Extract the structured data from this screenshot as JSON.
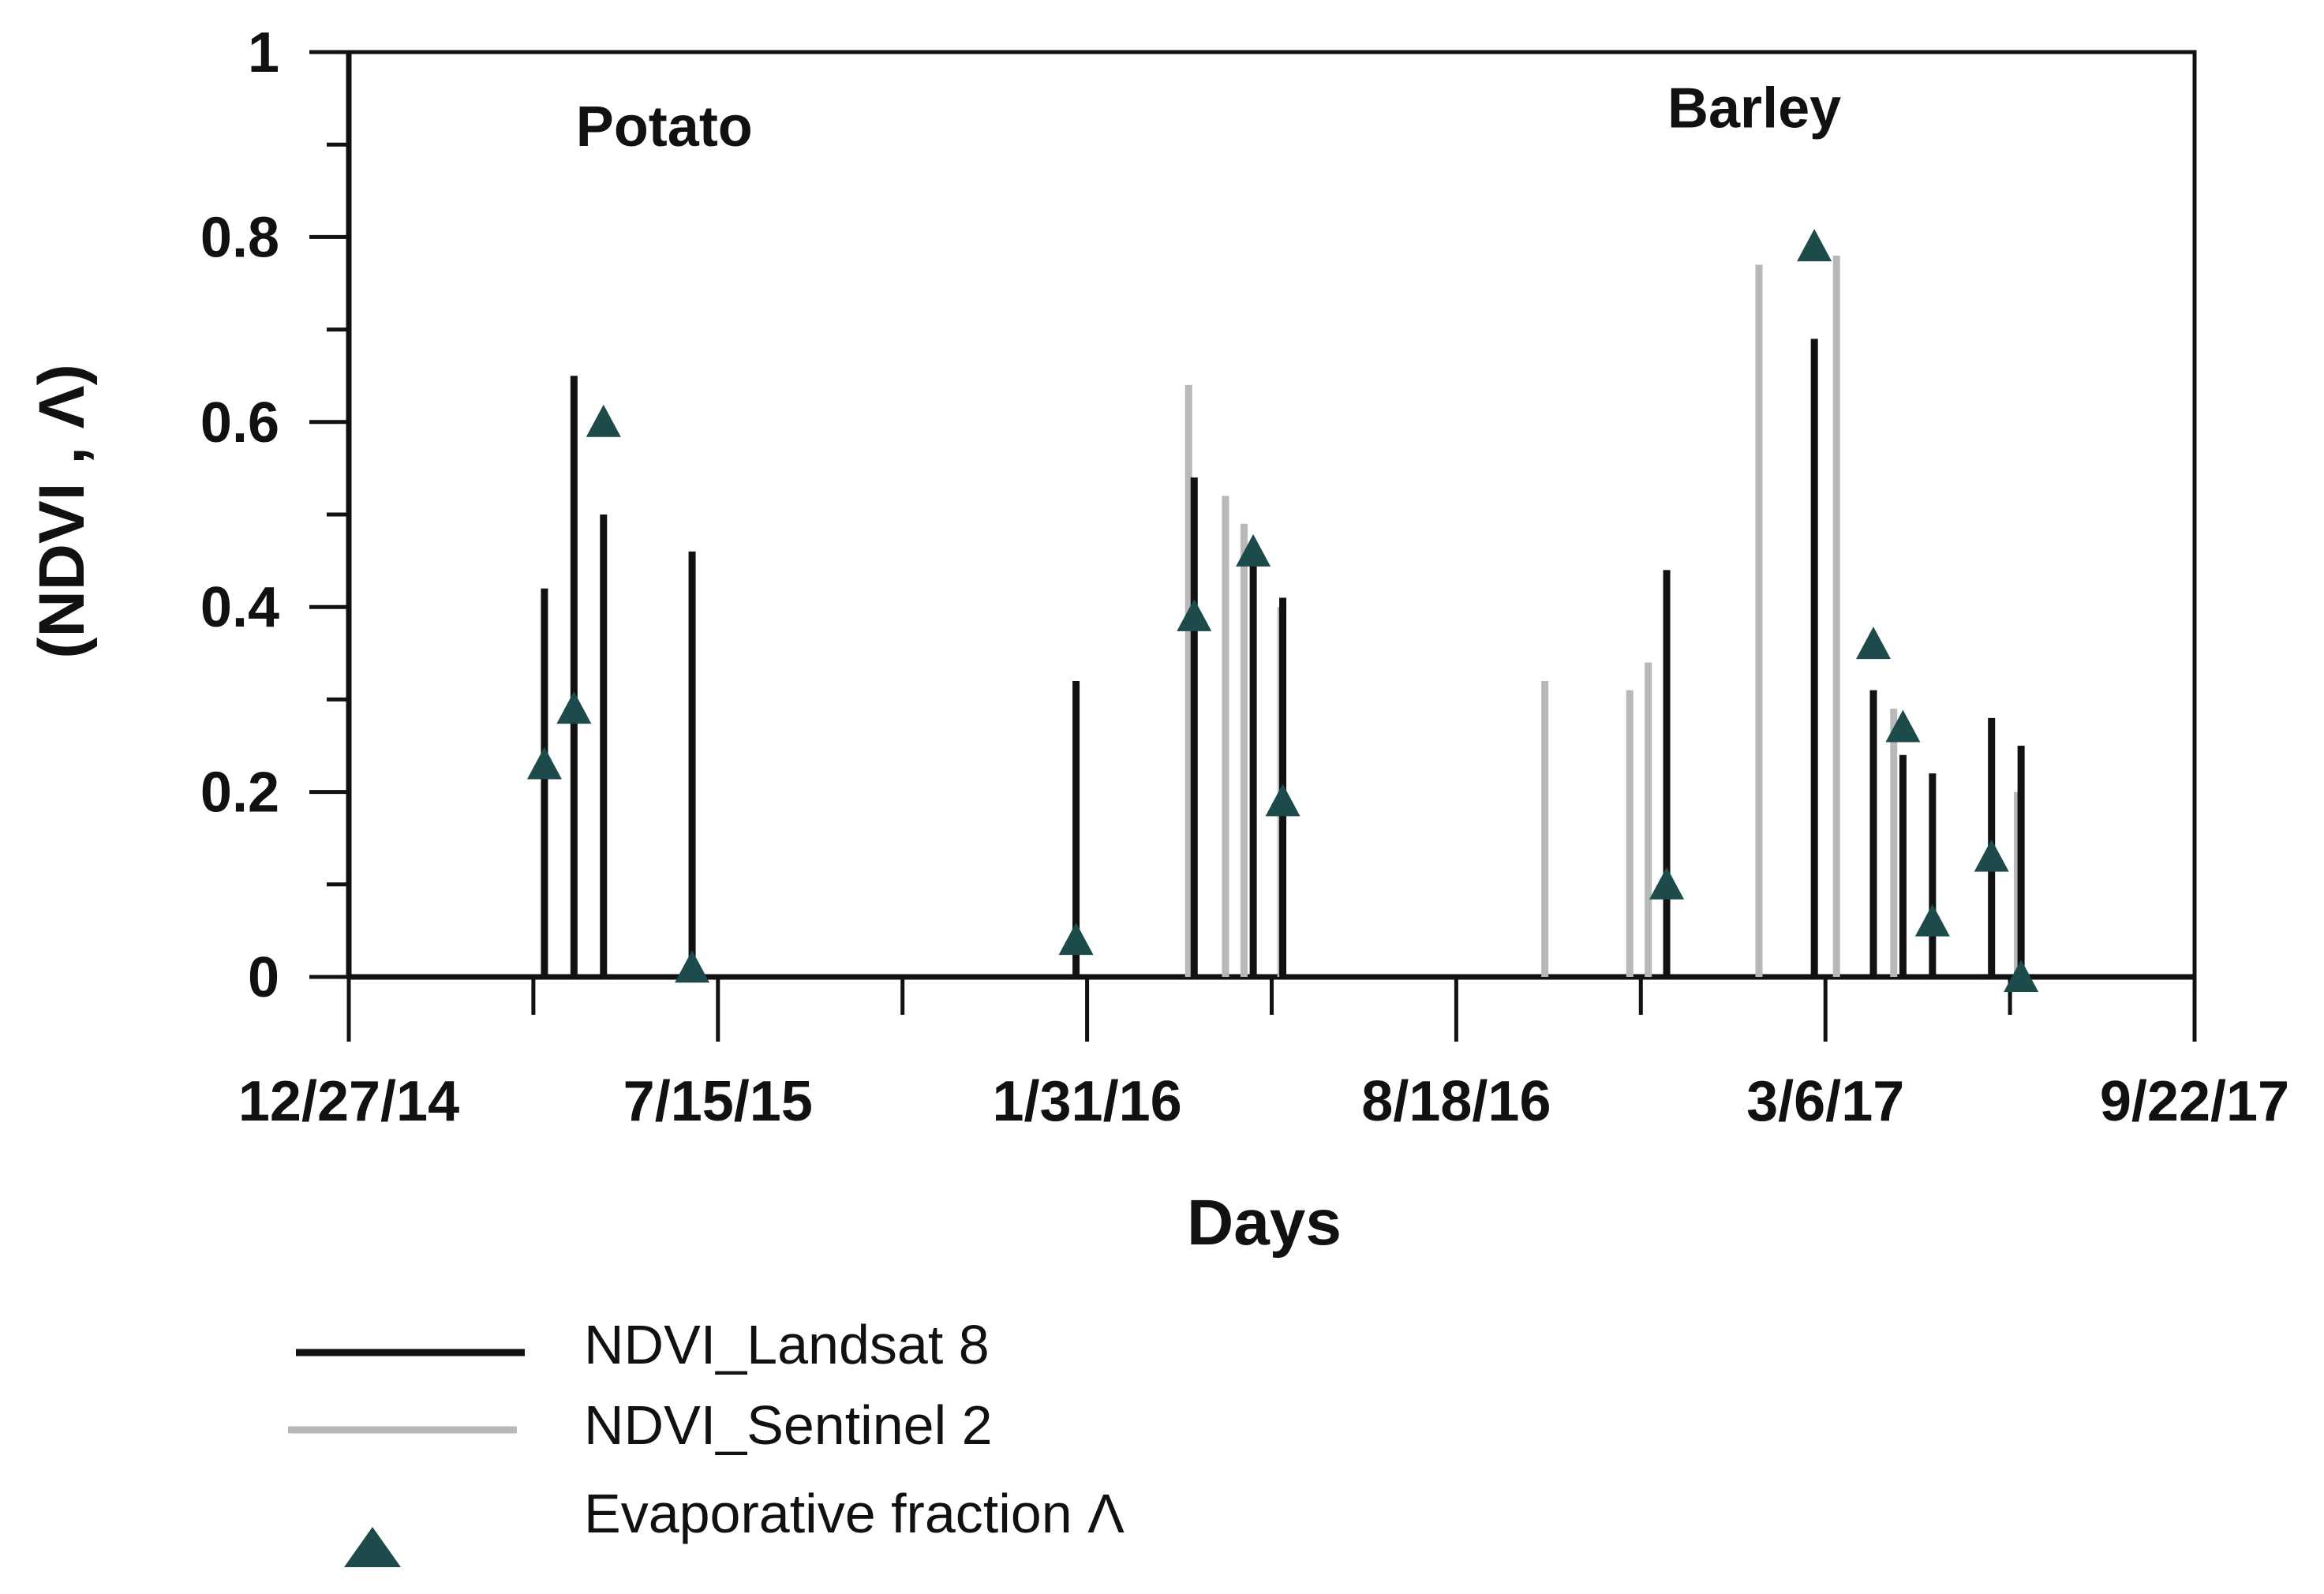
{
  "chart_data": {
    "type": "bar",
    "xlabel": "Days",
    "ylabel": "(NDVI , Λ)",
    "ylim": [
      0,
      1
    ],
    "y_ticks": [
      "0",
      "0.2",
      "0.4",
      "0.6",
      "0.8",
      "1"
    ],
    "x_ticks": [
      "12/27/14",
      "7/15/15",
      "1/31/16",
      "8/18/16",
      "3/6/17",
      "9/22/17"
    ],
    "x_range_days": [
      0,
      1000
    ],
    "annotations": [
      {
        "text": "Potato",
        "x_day": 200,
        "y": 0.92
      },
      {
        "text": "Barley",
        "x_day": 770,
        "y": 0.94
      }
    ],
    "series": [
      {
        "name": "NDVI_Landsat 8",
        "style": "stick",
        "color": "#111111",
        "points": [
          {
            "day": 106,
            "value": 0.42
          },
          {
            "day": 122,
            "value": 0.65
          },
          {
            "day": 138,
            "value": 0.5
          },
          {
            "day": 186,
            "value": 0.46
          },
          {
            "day": 394,
            "value": 0.32
          },
          {
            "day": 458,
            "value": 0.54
          },
          {
            "day": 490,
            "value": 0.46
          },
          {
            "day": 506,
            "value": 0.41
          },
          {
            "day": 714,
            "value": 0.44
          },
          {
            "day": 794,
            "value": 0.69
          },
          {
            "day": 826,
            "value": 0.31
          },
          {
            "day": 842,
            "value": 0.24
          },
          {
            "day": 858,
            "value": 0.22
          },
          {
            "day": 890,
            "value": 0.28
          },
          {
            "day": 906,
            "value": 0.25
          }
        ]
      },
      {
        "name": "NDVI_Sentinel 2",
        "style": "stick",
        "color": "#b8b8b8",
        "points": [
          {
            "day": 455,
            "value": 0.64
          },
          {
            "day": 475,
            "value": 0.52
          },
          {
            "day": 485,
            "value": 0.49
          },
          {
            "day": 505,
            "value": 0.4
          },
          {
            "day": 648,
            "value": 0.32
          },
          {
            "day": 694,
            "value": 0.31
          },
          {
            "day": 704,
            "value": 0.34
          },
          {
            "day": 764,
            "value": 0.77
          },
          {
            "day": 806,
            "value": 0.78
          },
          {
            "day": 837,
            "value": 0.29
          },
          {
            "day": 904,
            "value": 0.2
          }
        ]
      },
      {
        "name": "Evaporative fraction Λ",
        "style": "marker",
        "color": "#1d4a4a",
        "points": [
          {
            "day": 106,
            "value": 0.23
          },
          {
            "day": 122,
            "value": 0.29
          },
          {
            "day": 138,
            "value": 0.6
          },
          {
            "day": 186,
            "value": 0.01
          },
          {
            "day": 394,
            "value": 0.04
          },
          {
            "day": 458,
            "value": 0.39
          },
          {
            "day": 490,
            "value": 0.46
          },
          {
            "day": 506,
            "value": 0.19
          },
          {
            "day": 714,
            "value": 0.1
          },
          {
            "day": 794,
            "value": 0.79
          },
          {
            "day": 826,
            "value": 0.36
          },
          {
            "day": 842,
            "value": 0.27
          },
          {
            "day": 858,
            "value": 0.06
          },
          {
            "day": 890,
            "value": 0.13
          },
          {
            "day": 906,
            "value": 0.0
          }
        ]
      }
    ],
    "legend": {
      "placement": "bottom-left",
      "items": [
        {
          "label": "NDVI_Landsat 8",
          "kind": "line",
          "color": "#111111"
        },
        {
          "label": "NDVI_Sentinel 2",
          "kind": "line",
          "color": "#b8b8b8"
        },
        {
          "label": "Evaporative fraction Λ",
          "kind": "triangle",
          "color": "#1d4a4a"
        }
      ]
    }
  }
}
